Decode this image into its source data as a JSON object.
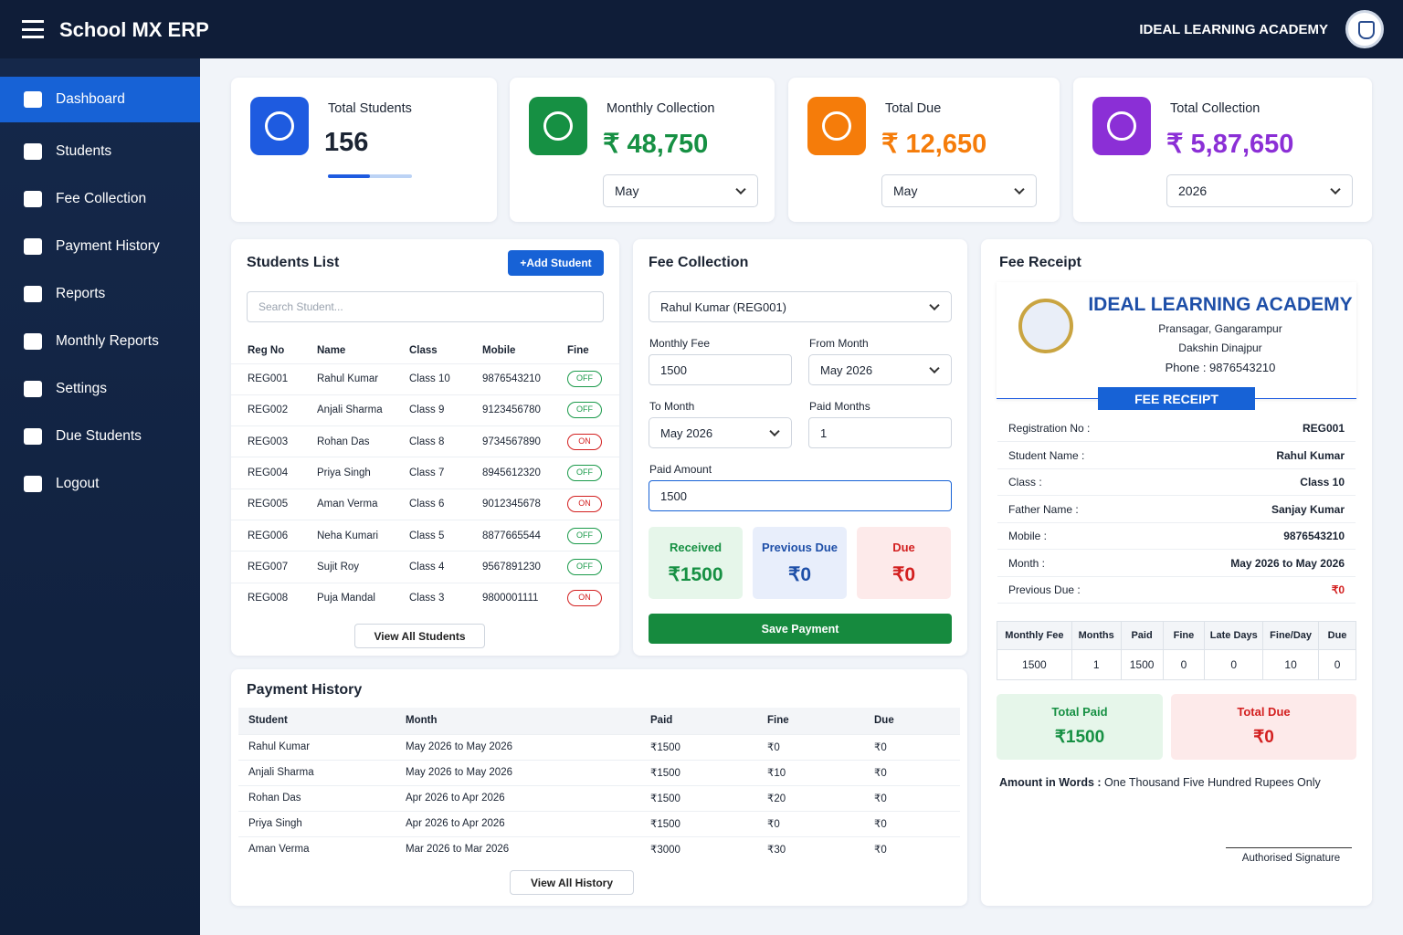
{
  "header": {
    "title": "School MX ERP",
    "school": "IDEAL LEARNING ACADEMY"
  },
  "sidebar": [
    "Dashboard",
    "Students",
    "Fee Collection",
    "Payment History",
    "Reports",
    "Monthly Reports",
    "Settings",
    "Due Students",
    "Logout"
  ],
  "stats": [
    {
      "label": "Total Students",
      "value": "156"
    },
    {
      "label": "Monthly Collection",
      "value": "₹ 48,750",
      "select": "May"
    },
    {
      "label": "Total Due",
      "value": "₹ 12,650",
      "select": "May"
    },
    {
      "label": "Total Collection",
      "value": "₹ 5,87,650",
      "select": "2026"
    }
  ],
  "students": {
    "title": "Students List",
    "add": "Add Student",
    "search": "Search Student...",
    "columns": [
      "Reg No",
      "Name",
      "Class",
      "Mobile",
      "Fine"
    ],
    "rows": [
      [
        "REG001",
        "Rahul Kumar",
        "Class 10",
        "9876543210",
        "OFF"
      ],
      [
        "REG002",
        "Anjali Sharma",
        "Class 9",
        "9123456780",
        "OFF"
      ],
      [
        "REG003",
        "Rohan Das",
        "Class 8",
        "9734567890",
        "ON"
      ],
      [
        "REG004",
        "Priya Singh",
        "Class 7",
        "8945612320",
        "OFF"
      ],
      [
        "REG005",
        "Aman Verma",
        "Class 6",
        "9012345678",
        "ON"
      ],
      [
        "REG006",
        "Neha Kumari",
        "Class 5",
        "8877665544",
        "OFF"
      ],
      [
        "REG007",
        "Sujit Roy",
        "Class 4",
        "9567891230",
        "OFF"
      ],
      [
        "REG008",
        "Puja Mandal",
        "Class 3",
        "9800001111",
        "ON"
      ]
    ],
    "view_all": "View All Students"
  },
  "fee_collection": {
    "title": "Fee Collection",
    "student": "Rahul Kumar (REG001)",
    "fields": [
      {
        "label": "Monthly Fee",
        "value": "1500"
      },
      {
        "label": "From Month",
        "value": "May 2026"
      },
      {
        "label": "To Month",
        "value": "May 2026"
      },
      {
        "label": "Paid Months",
        "value": "1"
      },
      {
        "label": "Paid Amount",
        "value": "1500"
      }
    ],
    "summary": [
      {
        "label": "Received",
        "value": "₹1500"
      },
      {
        "label": "Previous Due",
        "value": "₹0"
      },
      {
        "label": "Due",
        "value": "₹0"
      }
    ],
    "button": "Save Payment"
  },
  "payment_history": {
    "title": "Payment History",
    "columns": [
      "Student",
      "Month",
      "Paid",
      "Fine",
      "Due"
    ],
    "rows": [
      [
        "Rahul Kumar",
        "May 2026 to May 2026",
        "₹1500",
        "₹0",
        "₹0"
      ],
      [
        "Anjali Sharma",
        "May 2026 to May 2026",
        "₹1500",
        "₹10",
        "₹0"
      ],
      [
        "Rohan Das",
        "Apr 2026 to Apr 2026",
        "₹1500",
        "₹20",
        "₹0"
      ],
      [
        "Priya Singh",
        "Apr 2026 to Apr 2026",
        "₹1500",
        "₹0",
        "₹0"
      ],
      [
        "Aman Verma",
        "Mar 2026 to Mar 2026",
        "₹3000",
        "₹30",
        "₹0"
      ]
    ],
    "view_all": "View All History"
  },
  "receipt": {
    "title": "Fee Receipt",
    "school": "IDEAL LEARNING ACADEMY",
    "address": [
      "Pransagar, Gangarampur",
      "Dakshin Dinajpur",
      "Phone : 9876543210"
    ],
    "badge": "FEE RECEIPT",
    "details": [
      [
        "Registration No :",
        "REG001"
      ],
      [
        "Student Name :",
        "Rahul Kumar"
      ],
      [
        "Class :",
        "Class 10"
      ],
      [
        "Father Name :",
        "Sanjay Kumar"
      ],
      [
        "Mobile :",
        "9876543210"
      ],
      [
        "Month :",
        "May 2026 to May 2026"
      ],
      [
        "Previous Due :",
        "₹0"
      ]
    ],
    "columns": [
      "Monthly Fee",
      "Months",
      "Paid",
      "Fine",
      "Late Days",
      "Fine/Day",
      "Due"
    ],
    "row": [
      "1500",
      "1",
      "1500",
      "0",
      "0",
      "10",
      "0"
    ],
    "totals": [
      {
        "label": "Total Paid",
        "value": "₹1500"
      },
      {
        "label": "Total Due",
        "value": "₹0"
      }
    ],
    "words_label": "Amount in Words :",
    "words": "One Thousand Five Hundred Rupees Only",
    "signature": "Authorised Signature"
  }
}
